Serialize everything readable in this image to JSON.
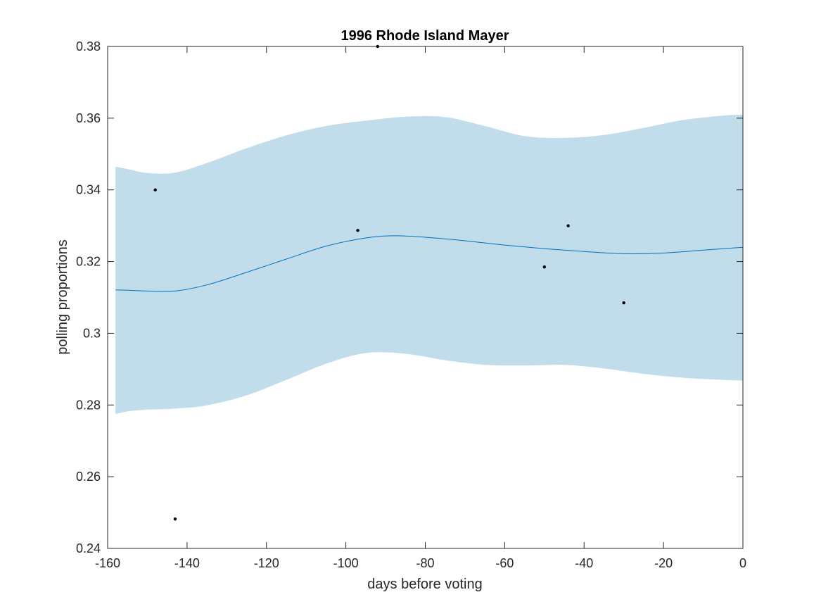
{
  "chart_data": {
    "type": "line",
    "title": "1996 Rhode Island Mayer",
    "xlabel": "days before voting",
    "ylabel": "polling proportions",
    "xlim": [
      -160,
      0
    ],
    "ylim": [
      0.24,
      0.38
    ],
    "x_ticks": [
      "-160",
      "-140",
      "-120",
      "-100",
      "-80",
      "-60",
      "-40",
      "-20",
      "0"
    ],
    "y_ticks": [
      "0.24",
      "0.26",
      "0.28",
      "0.3",
      "0.32",
      "0.34",
      "0.36",
      "0.38"
    ],
    "grid": false,
    "legend": "none",
    "colors": {
      "band": "#c1dcea",
      "line": "#0072bd",
      "points": "#000000",
      "axis": "#262626"
    },
    "series": [
      {
        "type": "band",
        "x": [
          -158,
          -155,
          -150,
          -143,
          -135,
          -125,
          -115,
          -105,
          -95,
          -85,
          -75,
          -65,
          -55,
          -45,
          -35,
          -25,
          -15,
          -5,
          0
        ],
        "upper": [
          0.3465,
          0.3458,
          0.3447,
          0.3448,
          0.3475,
          0.3516,
          0.3552,
          0.3578,
          0.3593,
          0.3604,
          0.3603,
          0.3578,
          0.355,
          0.3545,
          0.3553,
          0.3573,
          0.3595,
          0.3607,
          0.361
        ],
        "lower": [
          0.2775,
          0.2782,
          0.2787,
          0.279,
          0.2799,
          0.2827,
          0.287,
          0.2915,
          0.2945,
          0.2943,
          0.2925,
          0.2912,
          0.291,
          0.2912,
          0.2902,
          0.2887,
          0.2876,
          0.287,
          0.2868
        ]
      },
      {
        "type": "line",
        "x": [
          -158,
          -155,
          -150,
          -143,
          -135,
          -125,
          -115,
          -105,
          -95,
          -88,
          -80,
          -70,
          -60,
          -50,
          -40,
          -30,
          -20,
          -10,
          0
        ],
        "y": [
          0.3121,
          0.312,
          0.3118,
          0.3118,
          0.3135,
          0.317,
          0.3207,
          0.3243,
          0.3266,
          0.3272,
          0.3268,
          0.3258,
          0.3246,
          0.3236,
          0.3228,
          0.3222,
          0.3224,
          0.3232,
          0.324
        ]
      },
      {
        "type": "scatter",
        "x": [
          -148,
          -143,
          -97,
          -92,
          -50,
          -44,
          -30
        ],
        "y": [
          0.34,
          0.2482,
          0.3287,
          0.38,
          0.3185,
          0.33,
          0.3085
        ]
      }
    ]
  }
}
